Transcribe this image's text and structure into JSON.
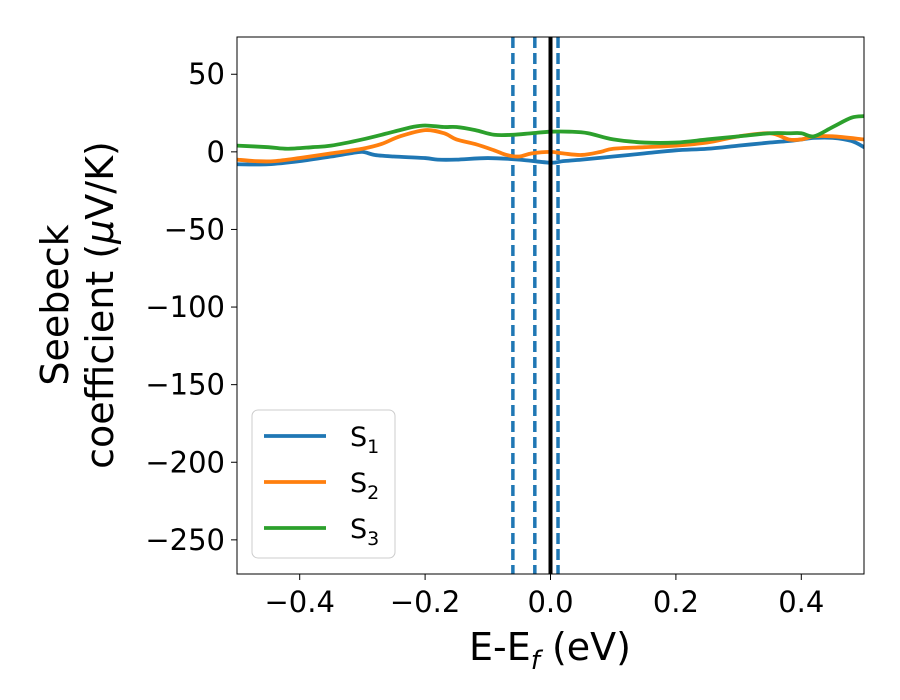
{
  "chart_data": {
    "type": "line",
    "xlabel": {
      "base": "E-E",
      "sub": "f",
      "suffix": " (eV)"
    },
    "ylabel": {
      "line1": "Seebeck",
      "line2_prefix": "coefficient  (",
      "mu": "μ",
      "line2_suffix": "V/K)"
    },
    "xlim": [
      -0.5,
      0.5
    ],
    "ylim": [
      -272,
      74
    ],
    "x_ticks": [
      -0.4,
      -0.2,
      0.0,
      0.2,
      0.4
    ],
    "x_tick_labels": [
      "−0.4",
      "−0.2",
      "0.0",
      "0.2",
      "0.4"
    ],
    "y_ticks": [
      50,
      0,
      -50,
      -100,
      -150,
      -200,
      -250
    ],
    "y_tick_labels": [
      "50",
      "0",
      "−50",
      "−100",
      "−150",
      "−200",
      "−250"
    ],
    "grid": false,
    "legend_position": "lower-left",
    "series": [
      {
        "name": "S",
        "sub": "1",
        "color": "#1f77b4",
        "x": [
          -0.5,
          -0.45,
          -0.4,
          -0.35,
          -0.32,
          -0.3,
          -0.28,
          -0.25,
          -0.2,
          -0.18,
          -0.15,
          -0.1,
          -0.05,
          0.0,
          0.02,
          0.05,
          0.1,
          0.15,
          0.2,
          0.25,
          0.3,
          0.35,
          0.38,
          0.4,
          0.42,
          0.45,
          0.48,
          0.5
        ],
        "y": [
          -8,
          -8,
          -6,
          -3,
          -1,
          0,
          -2,
          -3,
          -4,
          -5,
          -5,
          -4,
          -5,
          -7,
          -6,
          -5,
          -3,
          -1,
          1,
          2,
          4,
          6,
          7,
          8,
          9,
          9,
          7,
          3
        ]
      },
      {
        "name": "S",
        "sub": "2",
        "color": "#ff7f0e",
        "x": [
          -0.5,
          -0.47,
          -0.44,
          -0.4,
          -0.35,
          -0.3,
          -0.27,
          -0.24,
          -0.2,
          -0.17,
          -0.15,
          -0.12,
          -0.09,
          -0.07,
          -0.05,
          -0.03,
          0.0,
          0.02,
          0.05,
          0.08,
          0.1,
          0.15,
          0.2,
          0.25,
          0.3,
          0.35,
          0.38,
          0.4,
          0.42,
          0.45,
          0.5
        ],
        "y": [
          -5,
          -6,
          -6,
          -4,
          -1,
          2,
          5,
          10,
          14,
          12,
          8,
          5,
          1,
          -2,
          -3,
          -1,
          0,
          -1,
          -2,
          0,
          2,
          3,
          4,
          6,
          10,
          12,
          8,
          8,
          10,
          10,
          8
        ]
      },
      {
        "name": "S",
        "sub": "3",
        "color": "#2ca02c",
        "x": [
          -0.5,
          -0.45,
          -0.42,
          -0.38,
          -0.35,
          -0.3,
          -0.25,
          -0.22,
          -0.2,
          -0.17,
          -0.15,
          -0.12,
          -0.09,
          -0.06,
          -0.03,
          0.0,
          0.03,
          0.06,
          0.1,
          0.15,
          0.2,
          0.25,
          0.3,
          0.35,
          0.38,
          0.4,
          0.42,
          0.45,
          0.48,
          0.5
        ],
        "y": [
          4,
          3,
          2,
          3,
          4,
          8,
          13,
          16,
          17,
          16,
          16,
          14,
          11,
          11,
          12,
          13,
          13,
          12,
          8,
          6,
          6,
          8,
          10,
          12,
          12,
          12,
          10,
          16,
          22,
          23
        ]
      }
    ],
    "vlines": [
      {
        "x": -0.06,
        "style": "dashed",
        "color": "#1f77b4"
      },
      {
        "x": -0.025,
        "style": "dashed",
        "color": "#1f77b4"
      },
      {
        "x": 0.012,
        "style": "dashed",
        "color": "#1f77b4"
      },
      {
        "x": 0.0,
        "style": "solid",
        "color": "#000000"
      }
    ]
  }
}
